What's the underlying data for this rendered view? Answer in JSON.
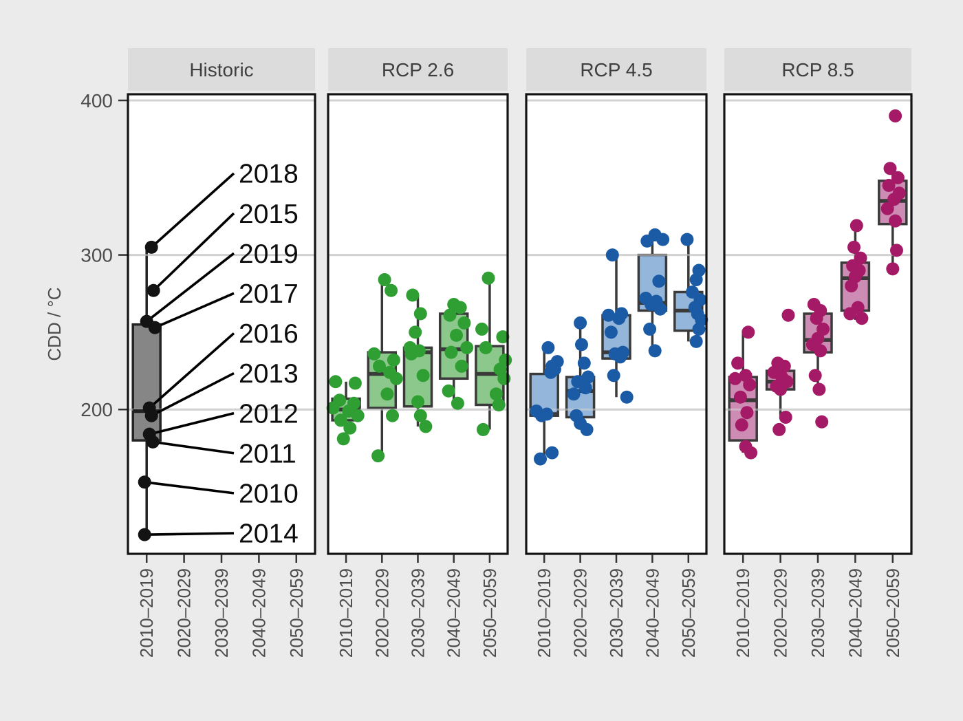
{
  "figure": {
    "background": "#ebebeb",
    "panel_background": "#ffffff",
    "panel_border_color": "#141414",
    "strip_background": "#dcdcdc",
    "strip_text_color": "#3f3f3f",
    "grid_color": "#d2d2d2",
    "axis_text_color": "#4d4d4d",
    "tick_color": "#333333",
    "leader_line_color": "#000000",
    "year_label_color": "#0d0d0d"
  },
  "chart_data": {
    "type": "boxplot-jitter",
    "title": "",
    "ylabel": "CDD / °C",
    "ylim": [
      106,
      404
    ],
    "grid": "horizontal",
    "y_tick_values": [
      400,
      300,
      200
    ],
    "y_tick_labels": [
      "400",
      "300",
      "200"
    ],
    "categories": [
      "2010–2019",
      "2020–2029",
      "2030–2039",
      "2040–2049",
      "2050–2059"
    ],
    "facets": [
      {
        "label": "Historic",
        "point_color": "#131313",
        "box_fill": "#868686",
        "box_stroke": "#222222",
        "labelled_points": true,
        "groups": [
          {
            "category": "2010–2019",
            "box": {
              "lo": 119,
              "q1": 180,
              "med": 199,
              "q3": 255,
              "hi": 305
            },
            "points": [
              {
                "year": "2018",
                "v": 305,
                "dx": 7
              },
              {
                "year": "2015",
                "v": 277,
                "dx": 10
              },
              {
                "year": "2019",
                "v": 257,
                "dx": 0
              },
              {
                "year": "2017",
                "v": 253,
                "dx": 12
              },
              {
                "year": "2016",
                "v": 201,
                "dx": 4
              },
              {
                "year": "2013",
                "v": 196,
                "dx": 7
              },
              {
                "year": "2012",
                "v": 184,
                "dx": 4
              },
              {
                "year": "2011",
                "v": 179,
                "dx": 9
              },
              {
                "year": "2010",
                "v": 153,
                "dx": -3
              },
              {
                "year": "2014",
                "v": 119,
                "dx": -3
              }
            ]
          }
        ]
      },
      {
        "label": "RCP 2.6",
        "point_color": "#2f9e33",
        "box_fill": "#8cc88b",
        "box_stroke": "#3a3a3a",
        "labelled_points": false,
        "groups": [
          {
            "category": "2010–2019",
            "box": {
              "lo": 181,
              "q1": 193,
              "med": 200,
              "q3": 207,
              "hi": 218
            },
            "points": [
              [
                -8,
                218
              ],
              [
                7,
                217
              ],
              [
                -5,
                206
              ],
              [
                6,
                204
              ],
              [
                -10,
                201
              ],
              [
                2,
                199
              ],
              [
                9,
                196
              ],
              [
                -4,
                193
              ],
              [
                3,
                188
              ],
              [
                -2,
                181
              ]
            ]
          },
          {
            "category": "2020–2029",
            "box": {
              "lo": 170,
              "q1": 201,
              "med": 223,
              "q3": 237,
              "hi": 284
            },
            "points": [
              [
                2,
                284
              ],
              [
                7,
                277
              ],
              [
                -6,
                236
              ],
              [
                9,
                232
              ],
              [
                -2,
                228
              ],
              [
                6,
                224
              ],
              [
                11,
                220
              ],
              [
                4,
                210
              ],
              [
                8,
                196
              ],
              [
                -3,
                170
              ]
            ]
          },
          {
            "category": "2030–2039",
            "box": {
              "lo": 189,
              "q1": 202,
              "med": 237,
              "q3": 240,
              "hi": 274
            },
            "points": [
              [
                -4,
                274
              ],
              [
                2,
                262
              ],
              [
                -2,
                250
              ],
              [
                -6,
                240
              ],
              [
                1,
                238
              ],
              [
                -5,
                236
              ],
              [
                4,
                222
              ],
              [
                0,
                205
              ],
              [
                2,
                196
              ],
              [
                6,
                189
              ]
            ]
          },
          {
            "category": "2040–2049",
            "box": {
              "lo": 204,
              "q1": 220,
              "med": 239,
              "q3": 262,
              "hi": 268
            },
            "points": [
              [
                0,
                268
              ],
              [
                5,
                266
              ],
              [
                -3,
                261
              ],
              [
                8,
                256
              ],
              [
                2,
                248
              ],
              [
                10,
                240
              ],
              [
                -2,
                237
              ],
              [
                6,
                228
              ],
              [
                -4,
                212
              ],
              [
                3,
                204
              ]
            ]
          },
          {
            "category": "2050–2059",
            "box": {
              "lo": 187,
              "q1": 203,
              "med": 223,
              "q3": 241,
              "hi": 285
            },
            "points": [
              [
                -1,
                285
              ],
              [
                -6,
                252
              ],
              [
                10,
                247
              ],
              [
                -3,
                240
              ],
              [
                12,
                232
              ],
              [
                8,
                226
              ],
              [
                11,
                220
              ],
              [
                5,
                210
              ],
              [
                7,
                203
              ],
              [
                -5,
                187
              ]
            ]
          }
        ]
      },
      {
        "label": "RCP 4.5",
        "point_color": "#1b5ba5",
        "box_fill": "#93b6da",
        "box_stroke": "#3a3a3a",
        "labelled_points": false,
        "groups": [
          {
            "category": "2010–2019",
            "box": {
              "lo": 170,
              "q1": 196,
              "med": 197,
              "q3": 223,
              "hi": 240
            },
            "points": [
              [
                3,
                240
              ],
              [
                10,
                231
              ],
              [
                6,
                228
              ],
              [
                8,
                226
              ],
              [
                5,
                224
              ],
              [
                -6,
                199
              ],
              [
                2,
                197
              ],
              [
                -2,
                196
              ],
              [
                6,
                172
              ],
              [
                -3,
                168
              ]
            ]
          },
          {
            "category": "2020–2029",
            "box": {
              "lo": 191,
              "q1": 195,
              "med": 212,
              "q3": 221,
              "hi": 256
            },
            "points": [
              [
                0,
                256
              ],
              [
                1,
                242
              ],
              [
                3,
                230
              ],
              [
                6,
                221
              ],
              [
                -2,
                218
              ],
              [
                4,
                214
              ],
              [
                -5,
                210
              ],
              [
                -3,
                196
              ],
              [
                0,
                191
              ],
              [
                5,
                187
              ]
            ]
          },
          {
            "category": "2030–2039",
            "box": {
              "lo": 208,
              "q1": 233,
              "med": 237,
              "q3": 261,
              "hi": 300
            },
            "points": [
              [
                -3,
                300
              ],
              [
                4,
                262
              ],
              [
                -6,
                261
              ],
              [
                2,
                259
              ],
              [
                -4,
                250
              ],
              [
                5,
                237
              ],
              [
                -1,
                236
              ],
              [
                3,
                234
              ],
              [
                -2,
                222
              ],
              [
                8,
                208
              ]
            ]
          },
          {
            "category": "2040–2049",
            "box": {
              "lo": 238,
              "q1": 264,
              "med": 269,
              "q3": 300,
              "hi": 312
            },
            "points": [
              [
                2,
                313
              ],
              [
                8,
                310
              ],
              [
                -4,
                309
              ],
              [
                5,
                283
              ],
              [
                -5,
                272
              ],
              [
                3,
                270
              ],
              [
                -1,
                268
              ],
              [
                6,
                265
              ],
              [
                -2,
                252
              ],
              [
                2,
                238
              ]
            ]
          },
          {
            "category": "2050–2059",
            "box": {
              "lo": 244,
              "q1": 251,
              "med": 264,
              "q3": 276,
              "hi": 310
            },
            "points": [
              [
                -1,
                310
              ],
              [
                8,
                290
              ],
              [
                6,
                284
              ],
              [
                3,
                276
              ],
              [
                9,
                271
              ],
              [
                5,
                266
              ],
              [
                7,
                262
              ],
              [
                10,
                258
              ],
              [
                8,
                252
              ],
              [
                6,
                244
              ]
            ]
          }
        ]
      },
      {
        "label": "RCP 8.5",
        "point_color": "#a51a66",
        "box_fill": "#cd8cb3",
        "box_stroke": "#3a3a3a",
        "labelled_points": false,
        "groups": [
          {
            "category": "2010–2019",
            "box": {
              "lo": 172,
              "q1": 180,
              "med": 206,
              "q3": 221,
              "hi": 249
            },
            "points": [
              [
                4,
                250
              ],
              [
                -4,
                230
              ],
              [
                2,
                222
              ],
              [
                -6,
                220
              ],
              [
                5,
                216
              ],
              [
                -2,
                208
              ],
              [
                3,
                198
              ],
              [
                -1,
                190
              ],
              [
                2,
                176
              ],
              [
                6,
                172
              ]
            ]
          },
          {
            "category": "2020–2029",
            "box": {
              "lo": 196,
              "q1": 213,
              "med": 218,
              "q3": 225,
              "hi": 230
            },
            "points": [
              [
                6,
                261
              ],
              [
                -2,
                230
              ],
              [
                3,
                228
              ],
              [
                -5,
                224
              ],
              [
                1,
                221
              ],
              [
                5,
                218
              ],
              [
                -3,
                215
              ],
              [
                0,
                213
              ],
              [
                4,
                195
              ],
              [
                -1,
                187
              ]
            ]
          },
          {
            "category": "2030–2039",
            "box": {
              "lo": 213,
              "q1": 237,
              "med": 245,
              "q3": 262,
              "hi": 268
            },
            "points": [
              [
                -3,
                268
              ],
              [
                2,
                264
              ],
              [
                -1,
                259
              ],
              [
                4,
                252
              ],
              [
                0,
                246
              ],
              [
                -4,
                242
              ],
              [
                2,
                238
              ],
              [
                -2,
                222
              ],
              [
                1,
                213
              ],
              [
                3,
                192
              ]
            ]
          },
          {
            "category": "2040–2049",
            "box": {
              "lo": 258,
              "q1": 264,
              "med": 285,
              "q3": 295,
              "hi": 315
            },
            "points": [
              [
                1,
                319
              ],
              [
                -1,
                305
              ],
              [
                4,
                298
              ],
              [
                -2,
                293
              ],
              [
                3,
                290
              ],
              [
                0,
                286
              ],
              [
                -3,
                280
              ],
              [
                2,
                266
              ],
              [
                -4,
                262
              ],
              [
                5,
                259
              ]
            ]
          },
          {
            "category": "2050–2059",
            "box": {
              "lo": 292,
              "q1": 320,
              "med": 335,
              "q3": 348,
              "hi": 357
            },
            "points": [
              [
                2,
                390
              ],
              [
                -2,
                356
              ],
              [
                4,
                350
              ],
              [
                -3,
                345
              ],
              [
                5,
                340
              ],
              [
                1,
                336
              ],
              [
                -4,
                330
              ],
              [
                2,
                322
              ],
              [
                3,
                303
              ],
              [
                0,
                291
              ]
            ]
          }
        ]
      }
    ]
  }
}
